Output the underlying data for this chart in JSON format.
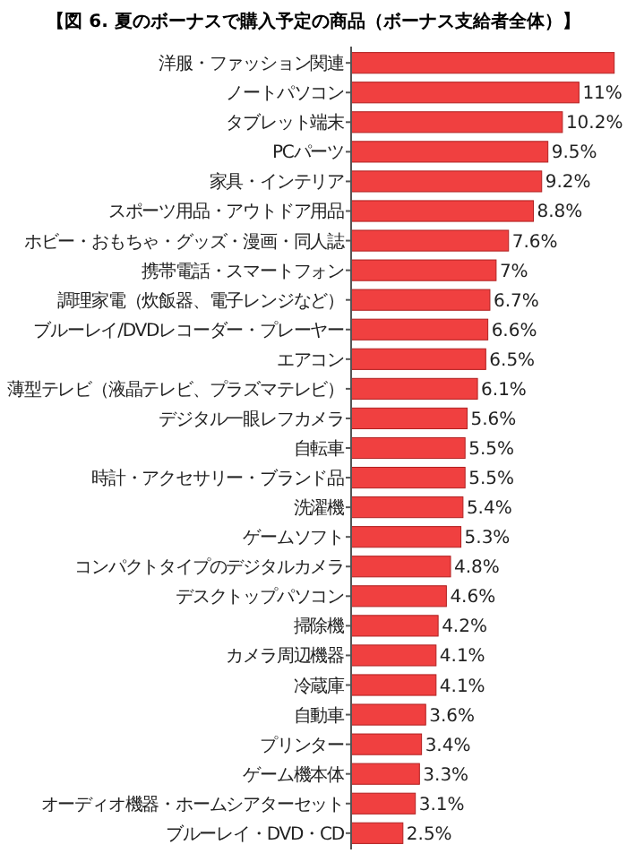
{
  "chart_data": {
    "type": "bar",
    "orientation": "horizontal",
    "xlim": [
      0,
      12.8
    ],
    "title": "【図 6. 夏のボーナスで購入予定の商品（ボーナス支給者全体）】",
    "categories": [
      "洋服・ファッション関連",
      "ノートパソコン",
      "タブレット端末",
      "PCパーツ",
      "家具・インテリア",
      "スポーツ用品・アウトドア用品",
      "ホビー・おもちゃ・グッズ・漫画・同人誌",
      "携帯電話・スマートフォン",
      "調理家電（炊飯器、電子レンジなど）",
      "ブルーレイ/DVDレコーダー・プレーヤー",
      "エアコン",
      "薄型テレビ（液晶テレビ、プラズマテレビ）",
      "デジタル一眼レフカメラ",
      "自転車",
      "時計・アクセサリー・ブランド品",
      "洗濯機",
      "ゲームソフト",
      "コンパクトタイプのデジタルカメラ",
      "デスクトップパソコン",
      "掃除機",
      "カメラ周辺機器",
      "冷蔵庫",
      "自動車",
      "プリンター",
      "ゲーム機本体",
      "オーディオ機器・ホームシアターセット",
      "ブルーレイ・DVD・CD"
    ],
    "values": [
      12.7,
      11,
      10.2,
      9.5,
      9.2,
      8.8,
      7.6,
      7,
      6.7,
      6.6,
      6.5,
      6.1,
      5.6,
      5.5,
      5.5,
      5.4,
      5.3,
      4.8,
      4.6,
      4.2,
      4.1,
      4.1,
      3.6,
      3.4,
      3.3,
      3.1,
      2.5
    ],
    "value_labels": [
      null,
      "11%",
      "10.2%",
      "9.5%",
      "9.2%",
      "8.8%",
      "7.6%",
      "7%",
      "6.7%",
      "6.6%",
      "6.5%",
      "6.1%",
      "5.6%",
      "5.5%",
      "5.5%",
      "5.4%",
      "5.3%",
      "4.8%",
      "4.6%",
      "4.2%",
      "4.1%",
      "4.1%",
      "3.6%",
      "3.4%",
      "3.3%",
      "3.1%",
      "2.5%"
    ],
    "color": "#f04040"
  }
}
